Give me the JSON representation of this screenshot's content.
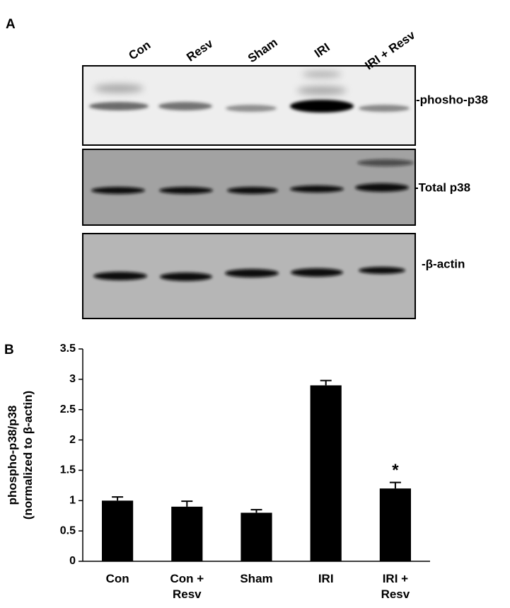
{
  "blot": {
    "panel_label": "A",
    "lanes": [
      "Con",
      "Resv",
      "Sham",
      "IRI",
      "IRI + Resv"
    ],
    "bands": [
      "-phosho-p38",
      "-Total p38",
      "-β-actin"
    ]
  },
  "chart_data": {
    "type": "bar",
    "panel_label": "B",
    "y_label": [
      "phospho-p38/p38",
      "(normalized to β-actin)"
    ],
    "categories": [
      "Con",
      "Con + Resv",
      "Sham",
      "IRI",
      "IRI + Resv"
    ],
    "values": [
      1.0,
      0.9,
      0.8,
      2.9,
      1.2
    ],
    "errors": [
      0.06,
      0.09,
      0.05,
      0.08,
      0.1
    ],
    "value_annotations": [
      null,
      null,
      null,
      null,
      "*"
    ],
    "color": "#000000",
    "ylim": [
      0,
      3.5
    ],
    "yticks": [
      0,
      0.5,
      1,
      1.5,
      2,
      2.5,
      3,
      3.5
    ],
    "grid": false
  }
}
